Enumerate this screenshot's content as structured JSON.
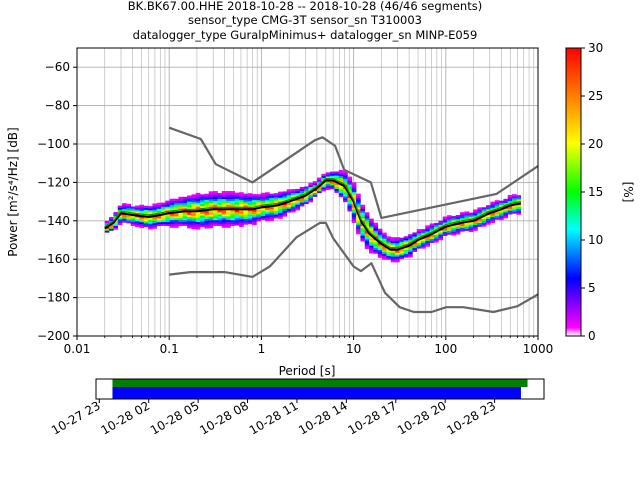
{
  "title_lines": [
    "BK.BK67.00.HHE   2018-10-28 -- 2018-10-28  (46/46 segments)",
    "sensor_type CMG-3T sensor_sn T310003",
    "datalogger_type GuralpMinimus+ datalogger_sn MINP-E059"
  ],
  "colorbar": {
    "label": "[%]",
    "min": 0,
    "max": 30,
    "ticks": [
      "0",
      "5",
      "10",
      "15",
      "20",
      "25",
      "30"
    ]
  },
  "timeline": {
    "tick_labels": [
      "10-27 23",
      "10-28 02",
      "10-28 05",
      "10-28 08",
      "10-28 11",
      "10-28 14",
      "10-28 17",
      "10-28 20",
      "10-28 23"
    ],
    "green_bar": {
      "start_hour": 23.8,
      "end_hour": 49.0,
      "color": "#008000"
    },
    "blue_bar": {
      "start_hour": 23.8,
      "end_hour": 48.6,
      "color": "#0000ff"
    },
    "range_hours": [
      22.8,
      50.0
    ]
  },
  "chart_data": {
    "type": "heatmap",
    "xlabel": "Period [s]",
    "ylabel": "Power [m²/s⁴/Hz] [dB]",
    "xscale": "log",
    "xlim": [
      0.01,
      1000
    ],
    "ylim": [
      -200,
      -50
    ],
    "xticks": [
      0.01,
      0.1,
      1,
      10,
      100,
      1000
    ],
    "xtick_labels": [
      "0.01",
      "0.1",
      "1",
      "10",
      "100",
      "1000"
    ],
    "yticks": [
      -200,
      -180,
      -160,
      -140,
      -120,
      -100,
      -80,
      -60
    ],
    "ytick_labels": [
      "−200",
      "−180",
      "−160",
      "−140",
      "−120",
      "−100",
      "−80",
      "−60"
    ],
    "grid": true,
    "series": [
      {
        "role": "high-noise-model",
        "color": "#666666",
        "x": [
          0.1,
          0.22,
          0.32,
          0.8,
          3.8,
          4.6,
          6.3,
          7.9,
          15.4,
          20,
          354.8,
          1000
        ],
        "y": [
          -91.5,
          -97.4,
          -110.5,
          -120,
          -98,
          -96.5,
          -101,
          -113.5,
          -120,
          -138.5,
          -126,
          -111.5
        ]
      },
      {
        "role": "low-noise-model",
        "color": "#666666",
        "x": [
          0.1,
          0.17,
          0.4,
          0.8,
          1.24,
          2.4,
          4.3,
          5.0,
          6.0,
          10.0,
          12.0,
          15.6,
          21.9,
          31.6,
          45,
          70,
          101,
          154,
          328,
          600,
          1000
        ],
        "y": [
          -168,
          -166.7,
          -166.7,
          -169.2,
          -163.7,
          -148.6,
          -141.1,
          -141.1,
          -149,
          -163.8,
          -166.2,
          -162.1,
          -177.5,
          -185,
          -187.5,
          -187.5,
          -185,
          -185,
          -187.5,
          -184.5,
          -178.3
        ]
      },
      {
        "role": "mode",
        "color": "#000000",
        "x": [
          0.02,
          0.025,
          0.03,
          0.04,
          0.06,
          0.08,
          0.1,
          0.15,
          0.2,
          0.3,
          0.5,
          0.8,
          1.0,
          1.5,
          2.0,
          3.0,
          4.0,
          5.0,
          6.0,
          8.0,
          10.0,
          12.0,
          15.0,
          20.0,
          25.0,
          30.0,
          40.0,
          50.0,
          70.0,
          100.0,
          150.0,
          200.0,
          300.0,
          400.0,
          500.0,
          650.0
        ],
        "y": [
          -144,
          -141,
          -136,
          -137,
          -138,
          -137,
          -136,
          -135,
          -135,
          -134,
          -134,
          -134,
          -133,
          -132,
          -130,
          -127,
          -123,
          -119,
          -119,
          -122,
          -130,
          -140,
          -147,
          -152,
          -155,
          -155,
          -153,
          -150,
          -147,
          -143,
          -141,
          -140,
          -136,
          -134,
          -132,
          -131
        ]
      },
      {
        "role": "mean",
        "color": "#009900",
        "x": [
          0.02,
          0.025,
          0.03,
          0.04,
          0.06,
          0.08,
          0.1,
          0.15,
          0.2,
          0.3,
          0.5,
          0.8,
          1.0,
          1.5,
          2.0,
          3.0,
          4.0,
          5.0,
          6.0,
          8.0,
          10.0,
          12.0,
          15.0,
          20.0,
          25.0,
          30.0,
          40.0,
          50.0,
          70.0,
          100.0,
          150.0,
          200.0,
          300.0,
          400.0,
          500.0,
          650.0
        ],
        "y": [
          -143,
          -140,
          -135,
          -136,
          -137,
          -136,
          -135,
          -134,
          -134,
          -133,
          -133,
          -133,
          -132,
          -131,
          -129,
          -126,
          -122,
          -118,
          -118,
          -121,
          -129,
          -139,
          -146,
          -151,
          -154,
          -154,
          -152,
          -149,
          -146,
          -142,
          -140,
          -139,
          -135,
          -133,
          -131,
          -130
        ]
      }
    ],
    "density": {
      "x": [
        0.02,
        0.025,
        0.03,
        0.04,
        0.06,
        0.08,
        0.1,
        0.15,
        0.2,
        0.3,
        0.5,
        0.8,
        1.0,
        1.5,
        2.0,
        3.0,
        4.0,
        5.0,
        6.0,
        8.0,
        10.0,
        12.0,
        15.0,
        20.0,
        25.0,
        30.0,
        40.0,
        50.0,
        70.0,
        100.0,
        150.0,
        200.0,
        300.0,
        400.0,
        500.0,
        650.0
      ],
      "center": [
        -144,
        -141,
        -136,
        -137,
        -138,
        -137,
        -136,
        -135,
        -135,
        -134,
        -134,
        -134,
        -133,
        -132,
        -130,
        -127,
        -123,
        -119,
        -119,
        -122,
        -130,
        -140,
        -147,
        -152,
        -155,
        -155,
        -153,
        -150,
        -147,
        -143,
        -141,
        -140,
        -136,
        -134,
        -132,
        -131
      ],
      "spread": [
        3,
        4,
        5,
        5,
        6,
        6,
        7,
        8,
        9,
        9,
        9,
        8,
        7,
        7,
        6,
        5,
        4,
        4,
        5,
        8,
        10,
        10,
        9,
        7,
        6,
        6,
        6,
        5,
        5,
        5,
        5,
        5,
        5,
        5,
        5,
        5
      ]
    }
  }
}
